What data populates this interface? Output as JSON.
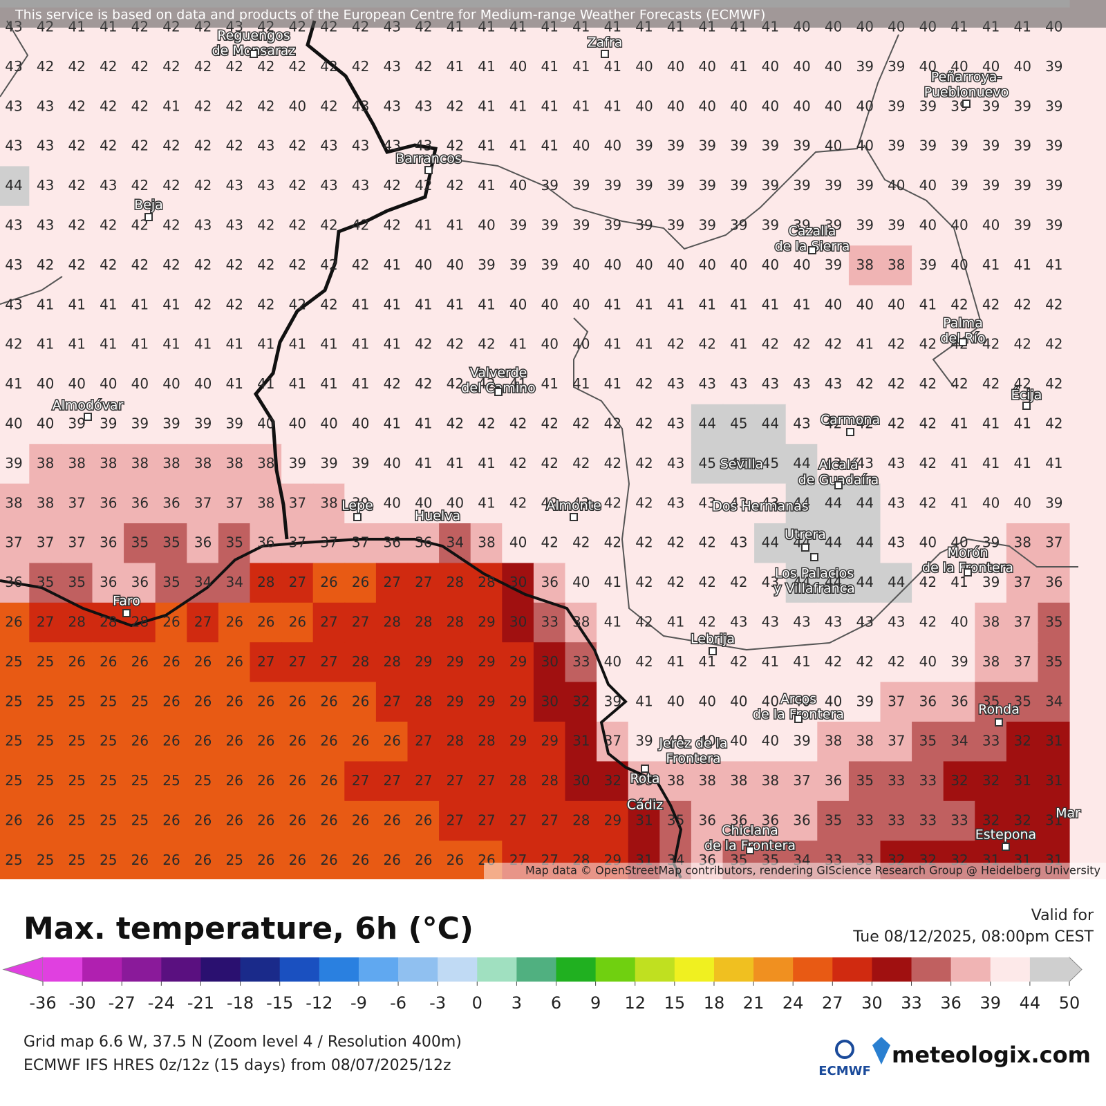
{
  "attribution": "This service is based on data and products of the European Centre for Medium-range Weather Forecasts (ECMWF)",
  "osm_credit": "Map data © OpenStreetMap contributors, rendering GIScience Research Group @ Heidelberg University",
  "title": "Max. temperature, 6h (°C)",
  "valid": {
    "label": "Valid for",
    "time": "Tue 08/12/2025, 08:00pm CEST"
  },
  "footer": {
    "lines": [
      "Grid map 6.6 W, 37.5 N (Zoom level 4 / Resolution 400m)",
      "ECMWF IFS HRES 0z/12z (15 days) from 08/07/2025/12z"
    ]
  },
  "logos": [
    "ECMWF",
    "meteologix.com"
  ],
  "colorbar": {
    "ticks": [
      -36,
      -30,
      -27,
      -24,
      -21,
      -18,
      -15,
      -12,
      -9,
      -6,
      -3,
      0,
      3,
      6,
      9,
      12,
      15,
      18,
      21,
      24,
      27,
      30,
      33,
      36,
      39,
      44,
      50
    ],
    "colors": [
      "#e040e0",
      "#b020b0",
      "#8a1a9a",
      "#5a1080",
      "#2a1070",
      "#1a2a8a",
      "#1a50c0",
      "#2a80e0",
      "#60a8f0",
      "#90c0f0",
      "#c0daf4",
      "#a0e0c0",
      "#50b080",
      "#20b020",
      "#70d010",
      "#c0e020",
      "#f0f020",
      "#f0c020",
      "#f09020",
      "#e85a14",
      "#d02a10",
      "#a01010",
      "#c06060",
      "#f0b4b4",
      "#fde9e9",
      "#cfcfcf"
    ]
  },
  "places": [
    {
      "lines": [
        "Reguengos",
        "de Monsaraz"
      ]
    },
    {
      "lines": [
        "Zafra"
      ]
    },
    {
      "lines": [
        "Peñarroya-",
        "Pueblonuevo"
      ]
    },
    {
      "lines": [
        "Barrancos"
      ]
    },
    {
      "lines": [
        "Beja"
      ]
    },
    {
      "lines": [
        "Cazalla",
        "de la Sierra"
      ]
    },
    {
      "lines": [
        "Palma",
        "del Río"
      ]
    },
    {
      "lines": [
        "Valverde",
        "del Camino"
      ]
    },
    {
      "lines": [
        "Écija"
      ]
    },
    {
      "lines": [
        "Almodóvar"
      ]
    },
    {
      "lines": [
        "Carmona"
      ]
    },
    {
      "lines": [
        "Sevilla"
      ]
    },
    {
      "lines": [
        "Alcalá",
        "de Guadaíra"
      ]
    },
    {
      "lines": [
        "Lepe"
      ]
    },
    {
      "lines": [
        "Huelva"
      ]
    },
    {
      "lines": [
        "Almonte"
      ]
    },
    {
      "lines": [
        "Dos Hermanas"
      ]
    },
    {
      "lines": [
        "Utrera"
      ]
    },
    {
      "lines": [
        "Morón",
        "de la Frontera"
      ]
    },
    {
      "lines": [
        "Los Palacios",
        "y Villafranca"
      ]
    },
    {
      "lines": [
        "Faro"
      ]
    },
    {
      "lines": [
        "Lebrija"
      ]
    },
    {
      "lines": [
        "Arcos",
        "de la Frontera"
      ]
    },
    {
      "lines": [
        "Ronda"
      ]
    },
    {
      "lines": [
        "Jerez de la",
        "Frontera"
      ]
    },
    {
      "lines": [
        "Rota"
      ]
    },
    {
      "lines": [
        "Cádiz"
      ]
    },
    {
      "lines": [
        "Chiclana",
        "de la Frontera"
      ]
    },
    {
      "lines": [
        "Estepona"
      ]
    },
    {
      "lines": [
        "Mar"
      ]
    }
  ],
  "grid": {
    "rows": [
      [
        43,
        42,
        41,
        41,
        42,
        42,
        42,
        43,
        42,
        42,
        42,
        42,
        43,
        42,
        41,
        41,
        41,
        41,
        41,
        41,
        41,
        41,
        41,
        41,
        41,
        40,
        40,
        40,
        40,
        40,
        41,
        41,
        41,
        40
      ],
      [
        43,
        42,
        42,
        42,
        42,
        42,
        42,
        42,
        42,
        42,
        42,
        42,
        43,
        42,
        41,
        41,
        40,
        41,
        41,
        41,
        40,
        40,
        40,
        41,
        40,
        40,
        40,
        39,
        39,
        40,
        40,
        40,
        40,
        39
      ],
      [
        43,
        43,
        42,
        42,
        42,
        41,
        42,
        42,
        42,
        40,
        42,
        43,
        43,
        43,
        42,
        41,
        41,
        41,
        41,
        41,
        40,
        40,
        40,
        40,
        40,
        40,
        40,
        40,
        39,
        39,
        39,
        39,
        39,
        39
      ],
      [
        43,
        43,
        42,
        42,
        42,
        42,
        42,
        42,
        43,
        42,
        43,
        43,
        43,
        43,
        42,
        41,
        41,
        41,
        40,
        40,
        39,
        39,
        39,
        39,
        39,
        39,
        40,
        40,
        39,
        39,
        39,
        39,
        39,
        39
      ],
      [
        44,
        43,
        42,
        43,
        42,
        42,
        42,
        43,
        43,
        42,
        43,
        43,
        42,
        42,
        42,
        41,
        40,
        39,
        39,
        39,
        39,
        39,
        39,
        39,
        39,
        39,
        39,
        39,
        40,
        40,
        39,
        39,
        39,
        39
      ],
      [
        43,
        43,
        42,
        42,
        42,
        42,
        43,
        43,
        42,
        42,
        42,
        42,
        42,
        41,
        41,
        40,
        39,
        39,
        39,
        39,
        39,
        39,
        39,
        39,
        39,
        39,
        39,
        39,
        39,
        40,
        40,
        40,
        39,
        39
      ],
      [
        43,
        42,
        42,
        42,
        42,
        42,
        42,
        42,
        42,
        42,
        42,
        42,
        41,
        40,
        40,
        39,
        39,
        39,
        40,
        40,
        40,
        40,
        40,
        40,
        40,
        40,
        39,
        38,
        38,
        39,
        40,
        41,
        41,
        41
      ],
      [
        43,
        41,
        41,
        41,
        41,
        41,
        42,
        42,
        42,
        42,
        42,
        41,
        41,
        41,
        41,
        41,
        40,
        40,
        40,
        41,
        41,
        41,
        41,
        41,
        41,
        41,
        40,
        40,
        40,
        41,
        42,
        42,
        42,
        42
      ],
      [
        42,
        41,
        41,
        41,
        41,
        41,
        41,
        41,
        41,
        41,
        41,
        41,
        41,
        42,
        42,
        42,
        41,
        40,
        40,
        41,
        41,
        42,
        42,
        41,
        42,
        42,
        42,
        41,
        42,
        42,
        42,
        42,
        42,
        42
      ],
      [
        41,
        40,
        40,
        40,
        40,
        40,
        40,
        41,
        41,
        41,
        41,
        41,
        42,
        42,
        42,
        42,
        41,
        41,
        41,
        41,
        42,
        43,
        43,
        43,
        43,
        43,
        43,
        42,
        42,
        42,
        42,
        42,
        42,
        42
      ],
      [
        40,
        40,
        39,
        39,
        39,
        39,
        39,
        39,
        40,
        40,
        40,
        40,
        41,
        41,
        42,
        42,
        42,
        42,
        42,
        42,
        42,
        43,
        44,
        45,
        44,
        43,
        42,
        42,
        42,
        42,
        41,
        41,
        41,
        42
      ],
      [
        39,
        38,
        38,
        38,
        38,
        38,
        38,
        38,
        38,
        39,
        39,
        39,
        40,
        41,
        41,
        41,
        42,
        42,
        42,
        42,
        42,
        43,
        45,
        45,
        45,
        44,
        43,
        43,
        43,
        42,
        41,
        41,
        41,
        41
      ],
      [
        38,
        38,
        37,
        36,
        36,
        36,
        37,
        37,
        38,
        37,
        38,
        39,
        40,
        40,
        40,
        41,
        42,
        42,
        42,
        42,
        42,
        43,
        43,
        43,
        43,
        44,
        44,
        44,
        43,
        42,
        41,
        40,
        40,
        39
      ],
      [
        37,
        37,
        37,
        36,
        35,
        35,
        36,
        35,
        36,
        37,
        37,
        37,
        36,
        36,
        34,
        38,
        40,
        42,
        42,
        42,
        42,
        42,
        42,
        43,
        44,
        44,
        44,
        44,
        43,
        40,
        40,
        39,
        38,
        37
      ],
      [
        36,
        35,
        35,
        36,
        36,
        35,
        34,
        34,
        28,
        27,
        26,
        26,
        27,
        27,
        28,
        28,
        30,
        36,
        40,
        41,
        42,
        42,
        42,
        42,
        43,
        44,
        44,
        44,
        44,
        42,
        41,
        39,
        37,
        36
      ],
      [
        26,
        27,
        28,
        28,
        28,
        26,
        27,
        26,
        26,
        26,
        27,
        27,
        28,
        28,
        28,
        29,
        30,
        33,
        38,
        41,
        42,
        41,
        42,
        43,
        43,
        43,
        43,
        43,
        43,
        42,
        40,
        38,
        37,
        35
      ],
      [
        25,
        25,
        26,
        26,
        26,
        26,
        26,
        26,
        27,
        27,
        27,
        28,
        28,
        29,
        29,
        29,
        29,
        30,
        33,
        40,
        42,
        41,
        41,
        42,
        41,
        41,
        42,
        42,
        42,
        40,
        39,
        38,
        37,
        35
      ],
      [
        25,
        25,
        25,
        25,
        25,
        26,
        26,
        26,
        26,
        26,
        26,
        26,
        27,
        28,
        29,
        29,
        29,
        30,
        32,
        39,
        41,
        40,
        40,
        40,
        40,
        40,
        40,
        39,
        37,
        36,
        36,
        35,
        35,
        34
      ],
      [
        25,
        25,
        25,
        25,
        26,
        26,
        26,
        26,
        26,
        26,
        26,
        26,
        26,
        27,
        28,
        28,
        29,
        29,
        31,
        37,
        39,
        40,
        40,
        40,
        40,
        39,
        38,
        38,
        37,
        35,
        34,
        33,
        32,
        31
      ],
      [
        25,
        25,
        25,
        25,
        25,
        25,
        25,
        26,
        26,
        26,
        26,
        27,
        27,
        27,
        27,
        27,
        28,
        28,
        30,
        32,
        38,
        38,
        38,
        38,
        38,
        37,
        36,
        35,
        33,
        33,
        32,
        32,
        31,
        31
      ],
      [
        26,
        26,
        25,
        25,
        25,
        26,
        26,
        26,
        26,
        26,
        26,
        26,
        26,
        26,
        27,
        27,
        27,
        27,
        28,
        29,
        31,
        35,
        36,
        36,
        36,
        36,
        35,
        33,
        33,
        33,
        33,
        32,
        32,
        31
      ],
      [
        25,
        25,
        25,
        25,
        26,
        26,
        26,
        25,
        26,
        26,
        26,
        26,
        26,
        26,
        26,
        26,
        27,
        27,
        28,
        29,
        31,
        34,
        36,
        35,
        35,
        34,
        33,
        33,
        32,
        32,
        32,
        31,
        31,
        31
      ]
    ]
  }
}
